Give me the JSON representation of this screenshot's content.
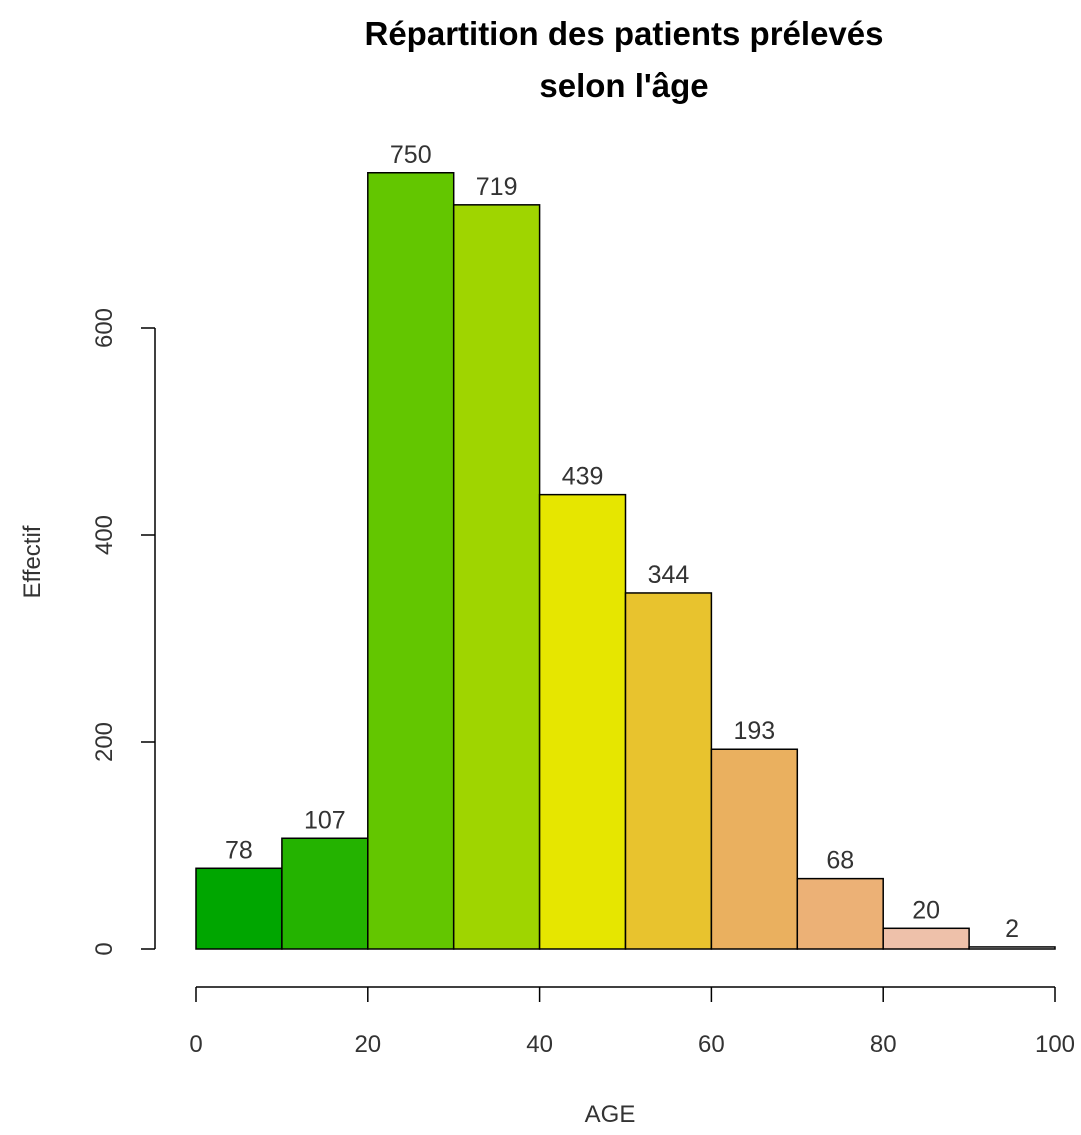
{
  "chart_data": {
    "type": "bar",
    "title_line1": "Répartition des patients prélevés",
    "title_line2": "selon l'âge",
    "xlabel": "AGE",
    "ylabel": "Effectif",
    "bin_edges": [
      0,
      10,
      20,
      30,
      40,
      50,
      60,
      70,
      80,
      90,
      100
    ],
    "values": [
      78,
      107,
      750,
      719,
      439,
      344,
      193,
      68,
      20,
      2
    ],
    "colors": [
      "#00A600",
      "#24B300",
      "#63C600",
      "#9FD500",
      "#E6E600",
      "#E8C32E",
      "#EAB05F",
      "#ECB176",
      "#EEC1AA",
      "#F2F2F2"
    ],
    "xticks": [
      0,
      20,
      40,
      60,
      80,
      100
    ],
    "yticks": [
      0,
      200,
      400,
      600
    ],
    "xlim": [
      0,
      100
    ],
    "ylim": [
      0,
      750
    ],
    "grid": false,
    "legend": false
  }
}
